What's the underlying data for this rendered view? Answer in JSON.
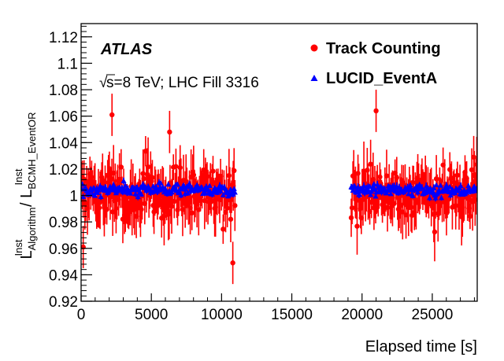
{
  "chart_data": {
    "type": "scatter",
    "experiment_label": "ATLAS",
    "info_sqrt": "√",
    "info_label": "s=8 TeV; LHC Fill 3316",
    "xlabel": "Elapsed time [s]",
    "ylabel_main": "L",
    "ylabel_num_sup": "Inst",
    "ylabel_num_sub": "Algorithm",
    "ylabel_sep": " / L",
    "ylabel_den_sup": "Inst",
    "ylabel_den_sub": "BCMH_EventOR",
    "xlim": [
      0,
      28200
    ],
    "ylim": [
      0.92,
      1.13
    ],
    "x_ticks": [
      0,
      5000,
      10000,
      15000,
      20000,
      25000
    ],
    "y_ticks": [
      0.92,
      0.94,
      0.96,
      0.98,
      1.0,
      1.02,
      1.04,
      1.06,
      1.08,
      1.1,
      1.12
    ],
    "y_tick_labels": [
      "0.92",
      "0.94",
      "0.96",
      "0.98",
      "1",
      "1.02",
      "1.04",
      "1.06",
      "1.08",
      "1.1",
      "1.12"
    ],
    "legend_position": "top-right",
    "time_ranges": [
      [
        0,
        11000
      ],
      [
        19200,
        28200
      ]
    ],
    "series": [
      {
        "name": "Track Counting",
        "marker": "circle",
        "color": "#ff0000",
        "step": 60,
        "mean": 1.001,
        "spread": 0.018,
        "error": 0.016,
        "outliers": [
          {
            "x": 2200,
            "y": 1.061
          },
          {
            "x": 10800,
            "y": 0.949
          },
          {
            "x": 21000,
            "y": 1.064
          },
          {
            "x": 150,
            "y": 0.961
          },
          {
            "x": 6300,
            "y": 1.048
          },
          {
            "x": 27950,
            "y": 1.029
          }
        ]
      },
      {
        "name": "LUCID_EventA",
        "marker": "triangle",
        "color": "#0000ff",
        "step": 60,
        "mean": 1.004,
        "spread": 0.004,
        "error": 0.002
      }
    ]
  }
}
